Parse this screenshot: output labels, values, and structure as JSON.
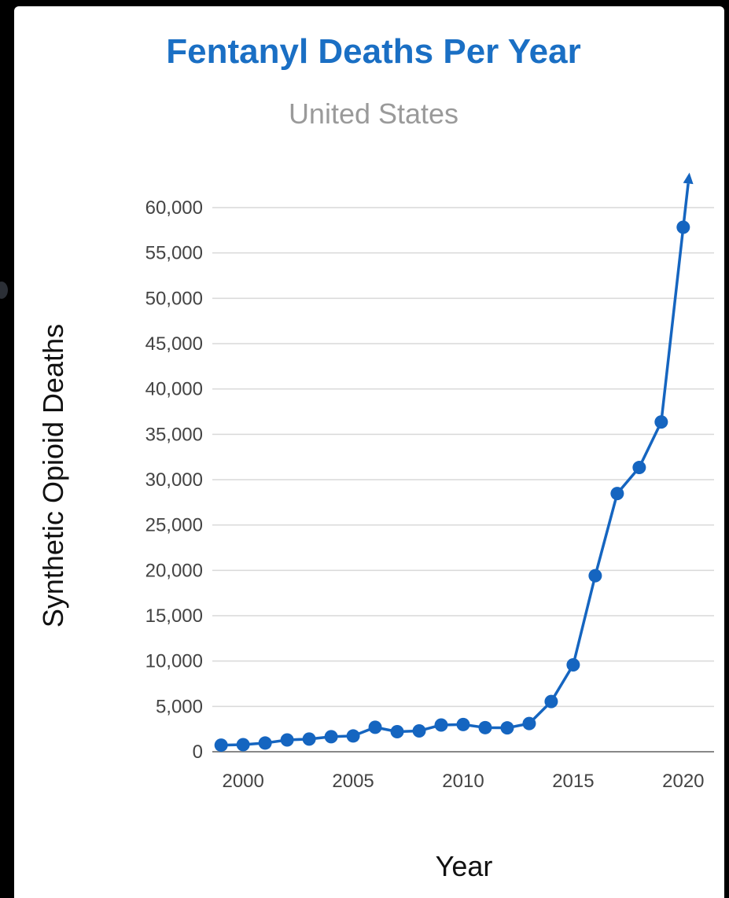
{
  "chart_data": {
    "type": "line",
    "title": "Fentanyl Deaths Per Year",
    "subtitle": "United States",
    "xlabel": "Year",
    "ylabel": "Synthetic Opioid Deaths",
    "x": [
      1999,
      2000,
      2001,
      2002,
      2003,
      2004,
      2005,
      2006,
      2007,
      2008,
      2009,
      2010,
      2011,
      2012,
      2013,
      2014,
      2015,
      2016,
      2017,
      2018,
      2019,
      2020
    ],
    "series": [
      {
        "values": [
          730,
          780,
          960,
          1300,
          1400,
          1660,
          1740,
          2700,
          2210,
          2300,
          2950,
          3000,
          2660,
          2630,
          3110,
          5540,
          9580,
          19410,
          28470,
          31340,
          36360,
          57830
        ]
      }
    ],
    "xlim": [
      1998.6,
      2021.4
    ],
    "ylim": [
      0,
      60000
    ],
    "xticks": [
      2000,
      2005,
      2010,
      2015,
      2020
    ],
    "xtick_labels": [
      "2000",
      "2005",
      "2010",
      "2015",
      "2020"
    ],
    "yticks": [
      0,
      5000,
      10000,
      15000,
      20000,
      25000,
      30000,
      35000,
      40000,
      45000,
      50000,
      55000,
      60000
    ],
    "ytick_labels": [
      "0",
      "5,000",
      "10,000",
      "15,000",
      "20,000",
      "25,000",
      "30,000",
      "35,000",
      "40,000",
      "45,000",
      "50,000",
      "55,000",
      "60,000"
    ],
    "grid": true,
    "legend": "none",
    "trend_arrow": "up",
    "colors": {
      "title": "#1a6fc4",
      "subtitle": "#9a9a9a",
      "series": "#1565c0",
      "grid": "#d9d9d9",
      "axis": "#888888",
      "tick_text": "#444444",
      "axis_label": "#111111"
    }
  }
}
